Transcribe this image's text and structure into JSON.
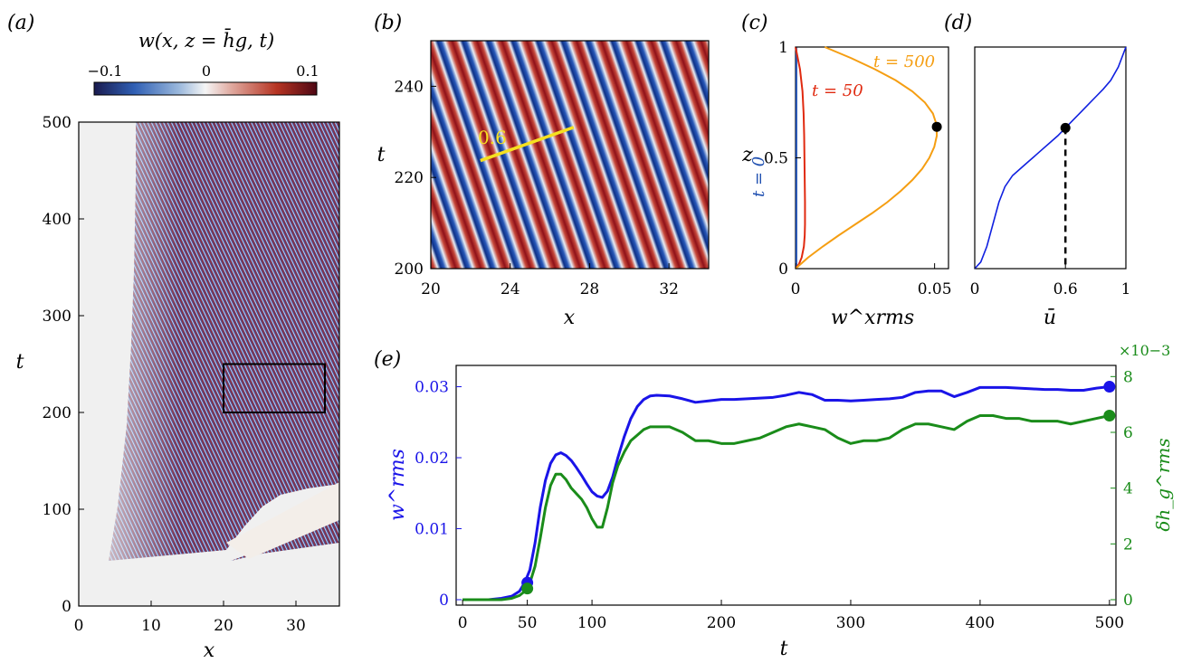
{
  "chart_data": [
    {
      "panel": "(a)",
      "type": "heatmap",
      "colorbar": {
        "title": "w(x, z = h̄g, t)",
        "ticks": [
          "−0.1",
          "0",
          "0.1"
        ],
        "range": [
          -0.1,
          0.1
        ],
        "colors": [
          "#1a1b4f",
          "#2f5fb4",
          "#9ab8dc",
          "#f5f5f5",
          "#dfa79d",
          "#b63422",
          "#4e0714"
        ]
      },
      "xlabel": "x",
      "ylabel": "t",
      "xlim": [
        0,
        36
      ],
      "ylim": [
        0,
        500
      ],
      "xticks": [
        0,
        10,
        20,
        30
      ],
      "yticks": [
        0,
        100,
        200,
        300,
        400,
        500
      ],
      "box": {
        "x": [
          20,
          34
        ],
        "t": [
          200,
          250
        ]
      }
    },
    {
      "panel": "(b)",
      "type": "heatmap",
      "xlabel": "x",
      "ylabel": "t",
      "xlim": [
        20,
        34
      ],
      "ylim": [
        200,
        250
      ],
      "xticks": [
        20,
        24,
        28,
        32
      ],
      "yticks": [
        200,
        220,
        240
      ],
      "annotation": {
        "label": "0.6",
        "line": {
          "x": [
            22.5,
            27.2
          ],
          "t": [
            223.7,
            231.0
          ]
        },
        "color": "#f5e020"
      }
    },
    {
      "panel": "(c)",
      "type": "line",
      "xlabel": "w^xrms",
      "ylabel": "z",
      "xlim": [
        0,
        0.055
      ],
      "ylim": [
        0,
        1
      ],
      "xticks": [
        "0",
        "0.05"
      ],
      "yticks": [
        "0",
        "0.5",
        "1"
      ],
      "series": [
        {
          "name": "t = 0",
          "color": "#1f4fb0",
          "z": [
            0,
            1
          ],
          "values": [
            0.0003,
            0.0003
          ]
        },
        {
          "name": "t = 50",
          "color": "#e02a10",
          "z": [
            0,
            0.02,
            0.05,
            0.1,
            0.15,
            0.2,
            0.3,
            0.4,
            0.5,
            0.6,
            0.7,
            0.8,
            0.9,
            0.95,
            1.0
          ],
          "values": [
            0,
            0.0012,
            0.0022,
            0.003,
            0.0033,
            0.0034,
            0.0034,
            0.0033,
            0.0032,
            0.0031,
            0.0029,
            0.0025,
            0.0016,
            0.0008,
            0
          ]
        },
        {
          "name": "t = 500",
          "color": "#f59e12",
          "z": [
            0,
            0.05,
            0.1,
            0.15,
            0.2,
            0.25,
            0.3,
            0.35,
            0.4,
            0.45,
            0.5,
            0.55,
            0.6,
            0.65,
            0.7,
            0.75,
            0.8,
            0.85,
            0.9,
            0.95,
            1.0
          ],
          "values": [
            0,
            0.0045,
            0.0098,
            0.0155,
            0.0215,
            0.0275,
            0.033,
            0.0378,
            0.042,
            0.0455,
            0.0481,
            0.0499,
            0.0508,
            0.0507,
            0.0494,
            0.0465,
            0.042,
            0.036,
            0.0285,
            0.02,
            0.0105
          ]
        }
      ],
      "marker": {
        "x": 0.0508,
        "z": 0.64,
        "color": "#000000"
      }
    },
    {
      "panel": "(d)",
      "type": "line",
      "xlabel": "ū",
      "ylabel": "",
      "xlim": [
        0,
        1
      ],
      "ylim": [
        0,
        1
      ],
      "xticks": [
        "0",
        "0.6",
        "1"
      ],
      "series": [
        {
          "color": "#1020e0",
          "u": [
            0,
            0.04,
            0.08,
            0.12,
            0.16,
            0.2,
            0.25,
            0.3,
            0.35,
            0.4,
            0.45,
            0.5,
            0.55,
            0.6,
            0.65,
            0.7,
            0.75,
            0.8,
            0.85,
            0.9,
            0.95,
            1.0
          ],
          "z": [
            0,
            0.03,
            0.1,
            0.2,
            0.3,
            0.37,
            0.42,
            0.45,
            0.48,
            0.51,
            0.54,
            0.57,
            0.6,
            0.635,
            0.67,
            0.705,
            0.74,
            0.775,
            0.81,
            0.85,
            0.91,
            1.0
          ]
        }
      ],
      "marker": {
        "u": 0.6,
        "z": 0.635,
        "dashed_to_axis": true
      }
    },
    {
      "panel": "(e)",
      "type": "line",
      "xlabel": "t",
      "ylabel": "w^rms",
      "ylabel_right": "δh_g^rms",
      "xlim": [
        -5,
        505
      ],
      "ylim": [
        0,
        0.033
      ],
      "ylim_right": [
        0,
        0.0084
      ],
      "xticks": [
        0,
        50,
        100,
        200,
        300,
        400,
        500
      ],
      "yticks": [
        "0",
        "0.01",
        "0.02",
        "0.03"
      ],
      "yticks_right": [
        "0",
        "2",
        "4",
        "6",
        "8"
      ],
      "right_multiplier": "×10−3",
      "series": [
        {
          "axis": "left",
          "color": "#1a14e8",
          "t": [
            0,
            10,
            20,
            30,
            38,
            44,
            48,
            52,
            56,
            60,
            64,
            68,
            72,
            76,
            80,
            84,
            88,
            92,
            96,
            100,
            104,
            108,
            112,
            116,
            120,
            125,
            130,
            135,
            140,
            145,
            150,
            160,
            170,
            180,
            190,
            200,
            210,
            220,
            230,
            240,
            250,
            260,
            270,
            280,
            290,
            300,
            310,
            320,
            330,
            340,
            350,
            360,
            370,
            380,
            390,
            400,
            410,
            420,
            430,
            440,
            450,
            460,
            470,
            480,
            490,
            500
          ],
          "values": [
            0,
            0,
            0,
            0.0002,
            0.0005,
            0.0012,
            0.0024,
            0.0042,
            0.008,
            0.013,
            0.0168,
            0.0192,
            0.0204,
            0.0207,
            0.0203,
            0.0196,
            0.0186,
            0.0175,
            0.0163,
            0.0152,
            0.0146,
            0.0144,
            0.0153,
            0.0173,
            0.02,
            0.023,
            0.0255,
            0.0272,
            0.0282,
            0.0287,
            0.0288,
            0.0287,
            0.0283,
            0.0278,
            0.028,
            0.0282,
            0.0282,
            0.0283,
            0.0284,
            0.0285,
            0.0288,
            0.0292,
            0.0289,
            0.0281,
            0.0281,
            0.028,
            0.0281,
            0.0282,
            0.0283,
            0.0285,
            0.0292,
            0.0294,
            0.0294,
            0.0286,
            0.0292,
            0.0299,
            0.0299,
            0.0299,
            0.0298,
            0.0297,
            0.0296,
            0.0296,
            0.0295,
            0.0295,
            0.0298,
            0.03
          ]
        },
        {
          "axis": "right",
          "color": "#1a8c1a",
          "t": [
            0,
            10,
            20,
            30,
            38,
            44,
            48,
            52,
            56,
            60,
            64,
            68,
            72,
            76,
            80,
            84,
            88,
            92,
            96,
            100,
            104,
            108,
            112,
            116,
            120,
            125,
            130,
            135,
            140,
            145,
            150,
            160,
            170,
            180,
            190,
            200,
            210,
            220,
            230,
            240,
            250,
            260,
            270,
            280,
            290,
            300,
            310,
            320,
            330,
            340,
            350,
            360,
            370,
            380,
            390,
            400,
            410,
            420,
            430,
            440,
            450,
            460,
            470,
            480,
            490,
            500
          ],
          "values": [
            0,
            0,
            0,
            0,
            5e-05,
            0.00015,
            0.0003,
            0.0006,
            0.0012,
            0.0022,
            0.0033,
            0.0041,
            0.0045,
            0.0045,
            0.0043,
            0.004,
            0.0038,
            0.0036,
            0.0033,
            0.0029,
            0.0026,
            0.0026,
            0.0033,
            0.0042,
            0.0048,
            0.0053,
            0.0057,
            0.0059,
            0.0061,
            0.0062,
            0.0062,
            0.0062,
            0.006,
            0.0057,
            0.0057,
            0.0056,
            0.0056,
            0.0057,
            0.0058,
            0.006,
            0.0062,
            0.0063,
            0.0062,
            0.0061,
            0.0058,
            0.0056,
            0.0057,
            0.0057,
            0.0058,
            0.0061,
            0.0063,
            0.0063,
            0.0062,
            0.0061,
            0.0064,
            0.0066,
            0.0066,
            0.0065,
            0.0065,
            0.0064,
            0.0064,
            0.0064,
            0.0063,
            0.0064,
            0.0065,
            0.0066
          ]
        }
      ],
      "markers": [
        {
          "t": 50,
          "axis": "left",
          "y": 0.0024,
          "color": "#1a14e8"
        },
        {
          "t": 50,
          "axis": "right",
          "y": 0.0004,
          "color": "#1a8c1a"
        },
        {
          "t": 500,
          "axis": "left",
          "y": 0.03,
          "color": "#1a14e8"
        },
        {
          "t": 500,
          "axis": "right",
          "y": 0.0066,
          "color": "#1a8c1a"
        }
      ]
    }
  ],
  "labels": {
    "panel_a": "(a)",
    "panel_b": "(b)",
    "panel_c": "(c)",
    "panel_d": "(d)",
    "panel_e": "(e)",
    "c_t0": "t = 0",
    "c_t50": "t = 50",
    "c_t500": "t = 500"
  }
}
